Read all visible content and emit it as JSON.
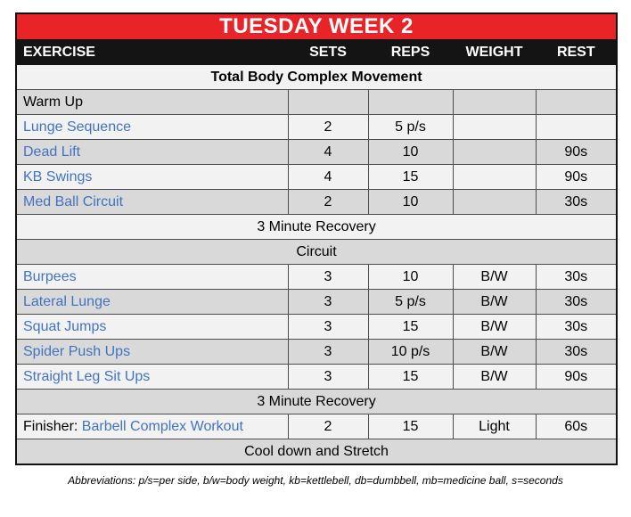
{
  "title": "TUESDAY WEEK 2",
  "columns": [
    "EXERCISE",
    "SETS",
    "REPS",
    "WEIGHT",
    "REST"
  ],
  "rows": [
    {
      "type": "section",
      "label": "Total Body Complex Movement"
    },
    {
      "type": "rowlabel",
      "label": "Warm Up",
      "sets": "",
      "reps": "",
      "weight": "",
      "rest": ""
    },
    {
      "type": "exercise",
      "name": "Lunge Sequence",
      "sets": "2",
      "reps": "5 p/s",
      "weight": "",
      "rest": ""
    },
    {
      "type": "exercise",
      "name": "Dead Lift",
      "sets": "4",
      "reps": "10",
      "weight": "",
      "rest": "90s"
    },
    {
      "type": "exercise",
      "name": "KB Swings",
      "sets": "4",
      "reps": "15",
      "weight": "",
      "rest": "90s"
    },
    {
      "type": "exercise",
      "name": "Med Ball Circuit",
      "sets": "2",
      "reps": "10",
      "weight": "",
      "rest": "30s"
    },
    {
      "type": "section",
      "label": "3 Minute Recovery"
    },
    {
      "type": "section",
      "label": "Circuit"
    },
    {
      "type": "exercise",
      "name": "Burpees",
      "sets": "3",
      "reps": "10",
      "weight": "B/W",
      "rest": "30s"
    },
    {
      "type": "exercise",
      "name": "Lateral Lunge",
      "sets": "3",
      "reps": "5 p/s",
      "weight": "B/W",
      "rest": "30s"
    },
    {
      "type": "exercise",
      "name": "Squat Jumps",
      "sets": "3",
      "reps": "15",
      "weight": "B/W",
      "rest": "30s"
    },
    {
      "type": "exercise",
      "name": "Spider Push Ups",
      "sets": "3",
      "reps": "10 p/s",
      "weight": "B/W",
      "rest": "30s"
    },
    {
      "type": "exercise",
      "name": "Straight Leg Sit Ups",
      "sets": "3",
      "reps": "15",
      "weight": "B/W",
      "rest": "90s"
    },
    {
      "type": "section",
      "label": "3 Minute Recovery"
    },
    {
      "type": "exercise",
      "prefix": "Finisher: ",
      "name": "Barbell Complex Workout",
      "sets": "2",
      "reps": "15",
      "weight": "Light",
      "rest": "60s"
    },
    {
      "type": "section",
      "label": "Cool down and Stretch"
    }
  ],
  "footer": "Abbreviations: p/s=per side, b/w=body weight, kb=kettlebell, db=dumbbell, mb=medicine ball, s=seconds",
  "colors": {
    "banner_red": "#e92428",
    "header_black": "#141414",
    "row_light": "#f2f2f2",
    "row_dark": "#d9d9d9",
    "link_blue": "#4273be"
  }
}
